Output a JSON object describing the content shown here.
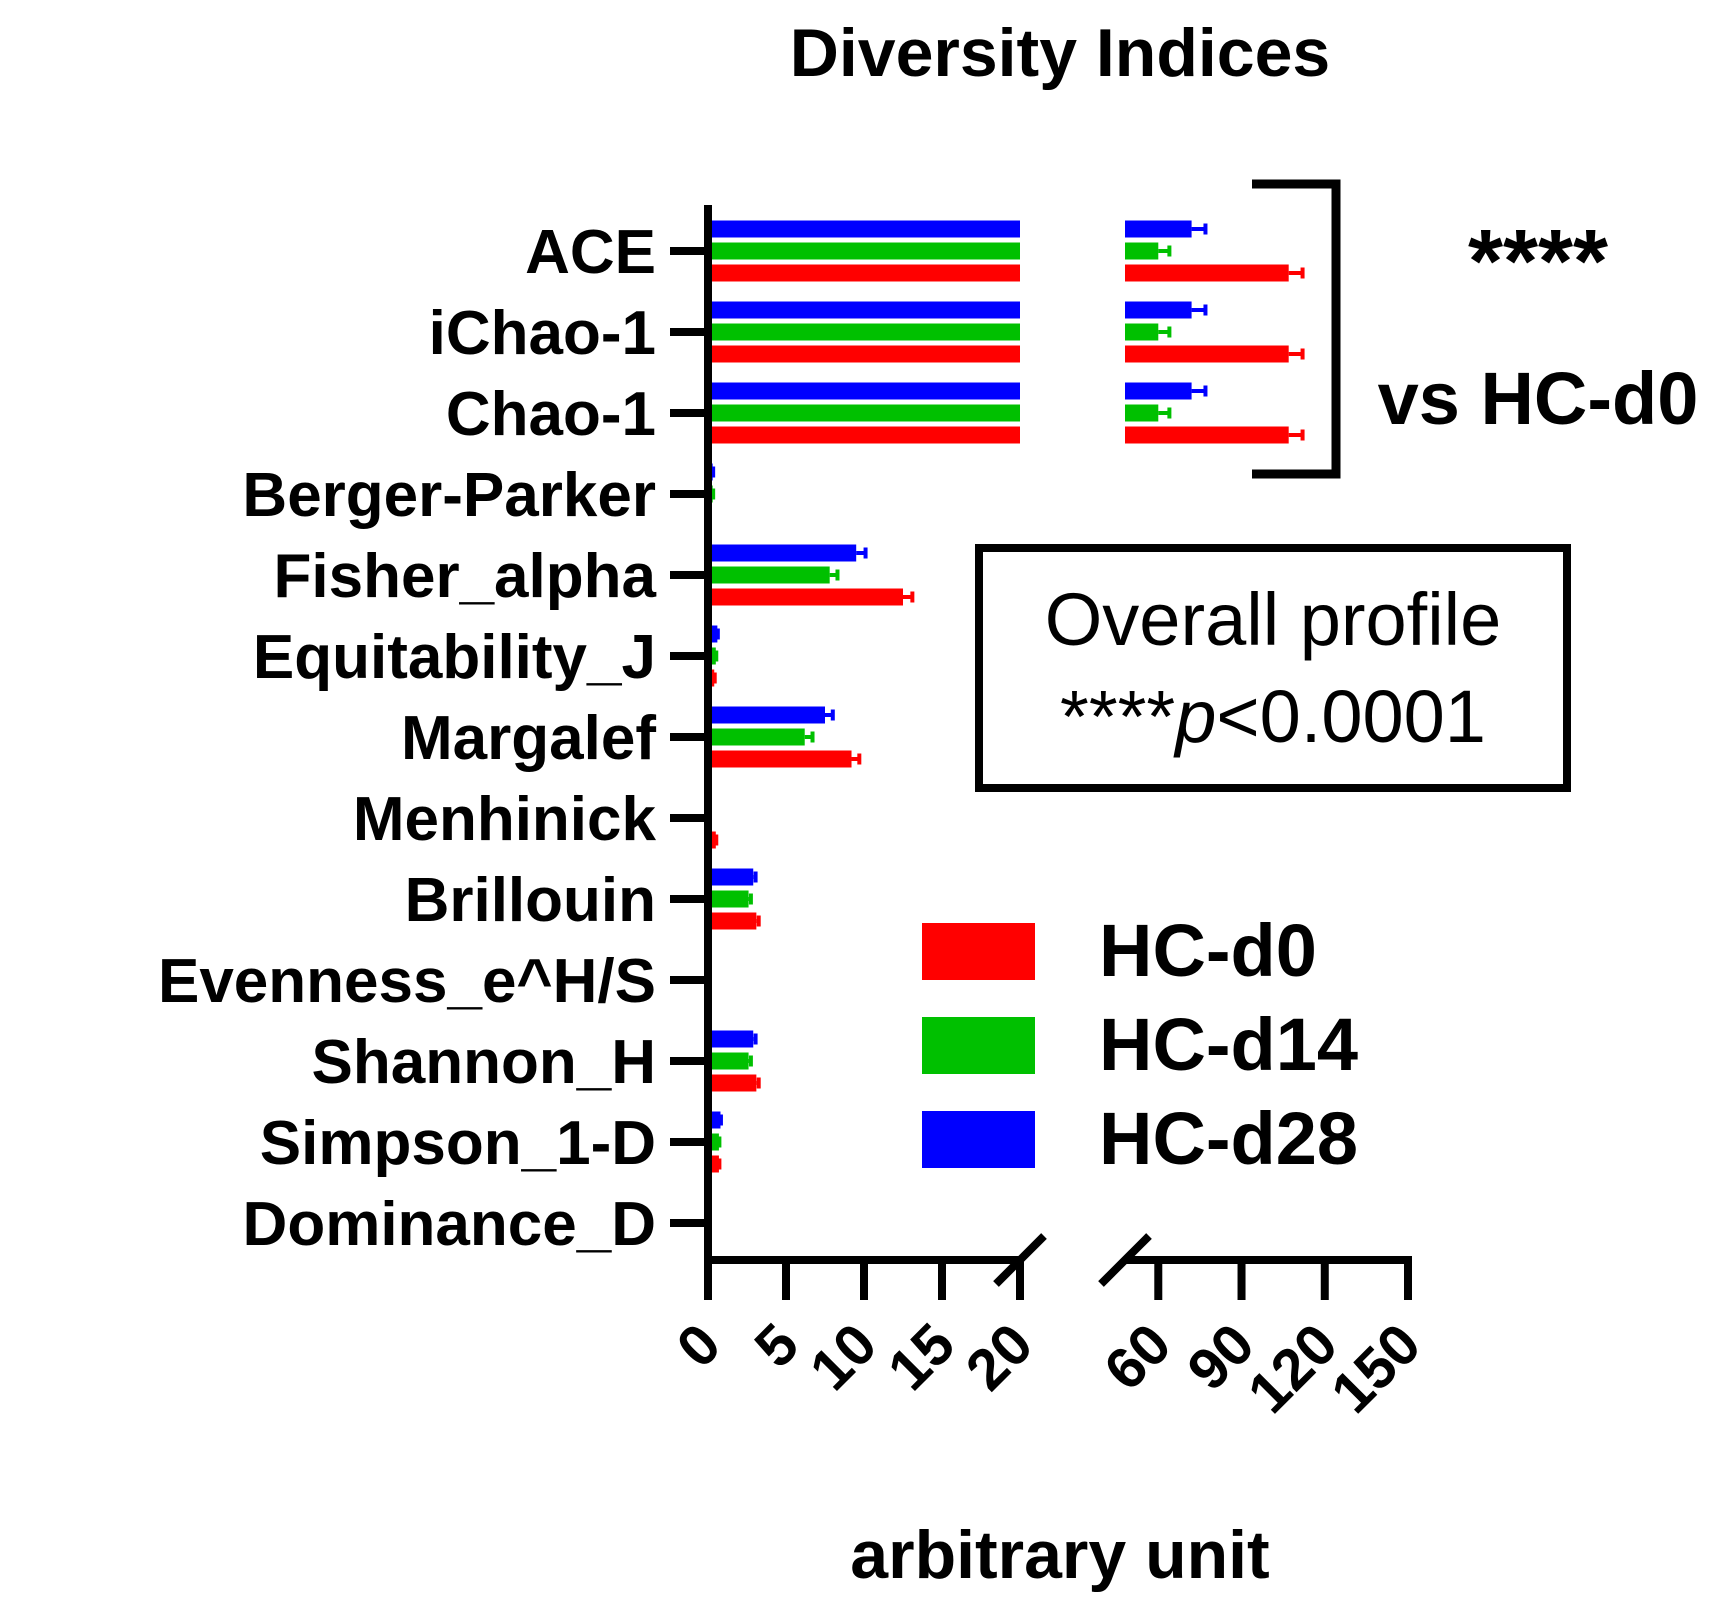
{
  "chart_data": {
    "type": "bar",
    "orientation": "horizontal",
    "title": "Diversity Indices",
    "xlabel": "arbitrary unit",
    "categories": [
      "ACE",
      "iChao-1",
      "Chao-1",
      "Berger-Parker",
      "Fisher_alpha",
      "Equitability_J",
      "Margalef",
      "Menhinick",
      "Brillouin",
      "Evenness_e^H/S",
      "Shannon_H",
      "Simpson_1-D",
      "Dominance_D"
    ],
    "x_axis": {
      "broken": true,
      "segments": [
        {
          "range": [
            0,
            20
          ],
          "ticks": [
            "0",
            "5",
            "10",
            "15",
            "20"
          ]
        },
        {
          "range": [
            48,
            150
          ],
          "ticks": [
            "60",
            "90",
            "120",
            "150"
          ]
        }
      ]
    },
    "series": [
      {
        "name": "HC-d28",
        "color": "#0000ff",
        "values": [
          72,
          72,
          72,
          0.3,
          9.5,
          0.6,
          7.5,
          0.1,
          2.9,
          0.1,
          2.9,
          0.8,
          0.2
        ],
        "errors": [
          5,
          5,
          5,
          0.03,
          0.6,
          0.03,
          0.5,
          0.03,
          0.15,
          0.03,
          0.15,
          0.03,
          0.03
        ]
      },
      {
        "name": "HC-d14",
        "color": "#00c000",
        "values": [
          60,
          60,
          60,
          0.3,
          7.8,
          0.5,
          6.2,
          0.2,
          2.6,
          0.1,
          2.6,
          0.7,
          0.2
        ],
        "errors": [
          4,
          4,
          4,
          0.03,
          0.5,
          0.03,
          0.5,
          0.03,
          0.15,
          0.03,
          0.15,
          0.03,
          0.03
        ]
      },
      {
        "name": "HC-d0",
        "color": "#ff0000",
        "values": [
          107,
          107,
          107,
          0.2,
          12.5,
          0.4,
          9.2,
          0.5,
          3.1,
          0.1,
          3.1,
          0.7,
          0.1
        ],
        "errors": [
          5,
          5,
          5,
          0.03,
          0.6,
          0.03,
          0.5,
          0.03,
          0.15,
          0.03,
          0.15,
          0.03,
          0.03
        ]
      }
    ],
    "legend": {
      "position": "bottom-right",
      "entries": [
        {
          "name": "HC-d0",
          "color": "#ff0000"
        },
        {
          "name": "HC-d14",
          "color": "#00c000"
        },
        {
          "name": "HC-d28",
          "color": "#0000ff"
        }
      ]
    },
    "annotations": {
      "significance_stars": "****",
      "significance_label": "vs HC-d0",
      "note_line1": "Overall profile",
      "note_line2_prefix": "****",
      "note_line2_italic": "p",
      "note_line2_suffix": "<0.0001"
    }
  }
}
